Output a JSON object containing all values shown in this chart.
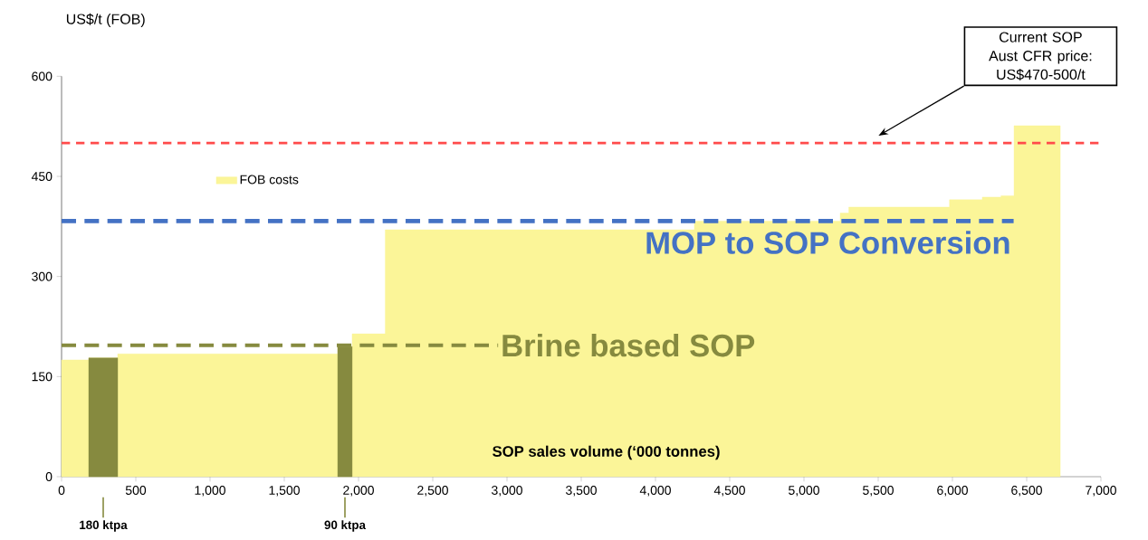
{
  "chart_data": {
    "type": "area",
    "ylabel": "US$/t (FOB)",
    "xlabel": "SOP sales volume (‘000 tonnes)",
    "xlim": [
      0,
      7000
    ],
    "xticks": [
      0,
      {
        "value": 500,
        "label": "500"
      },
      {
        "value": 1000,
        "label": "1,000"
      },
      {
        "value": 1500,
        "label": "1,500"
      },
      {
        "value": 2000,
        "label": "2,000"
      },
      {
        "value": 2500,
        "label": "2,500"
      },
      {
        "value": 3000,
        "label": "3,000"
      },
      {
        "value": 3500,
        "label": "3,500"
      },
      {
        "value": 4000,
        "label": "4,000"
      },
      {
        "value": 4500,
        "label": "4,500"
      },
      {
        "value": 5000,
        "label": "5,000"
      },
      {
        "value": 5500,
        "label": "5,500"
      },
      {
        "value": 6000,
        "label": "6,000"
      },
      {
        "value": 6500,
        "label": "6,500"
      },
      {
        "value": 7000,
        "label": "7,000"
      }
    ],
    "ylim": [
      0,
      600
    ],
    "yticks": [
      0,
      150,
      300,
      450,
      600
    ],
    "series": [
      {
        "name": "FOB costs",
        "color": "#fbf598",
        "x": [
          0,
          183,
          183,
          378,
          378,
          1860,
          1860,
          1957,
          1957,
          2180,
          2180,
          4262,
          4262,
          5244,
          5244,
          5302,
          5302,
          5980,
          5980,
          6201,
          6201,
          6327,
          6327,
          6415,
          6415,
          6726
        ],
        "values": [
          175,
          175,
          178,
          178,
          184,
          184,
          195,
          195,
          214,
          214,
          370,
          370,
          383,
          383,
          395,
          395,
          404,
          404,
          415,
          415,
          419,
          419,
          421,
          421,
          526,
          526
        ]
      },
      {
        "color": "#868a3f",
        "x": [
          183,
          378
        ],
        "values": [
          178,
          178
        ]
      },
      {
        "color": "#868a3f",
        "x": [
          1860,
          1957
        ],
        "values": [
          195,
          195
        ]
      }
    ],
    "ref_lines": [
      {
        "axis": "y",
        "value": 500,
        "color": "#ff4b4b",
        "line_style": "dashed"
      },
      {
        "axis": "y",
        "value": 383,
        "label": "MOP to SOP Conversion",
        "color": "#4472c4",
        "line_style": "dashed"
      },
      {
        "axis": "y",
        "value": 197,
        "label": "Brine based SOP",
        "color": "#868a3f",
        "line_style": "dashed"
      }
    ],
    "annotations": [
      "180 ktpa",
      "90 ktpa",
      "Current SOP Aust CFR price: US$470-500/t"
    ],
    "legend": "top left",
    "grid": false
  }
}
